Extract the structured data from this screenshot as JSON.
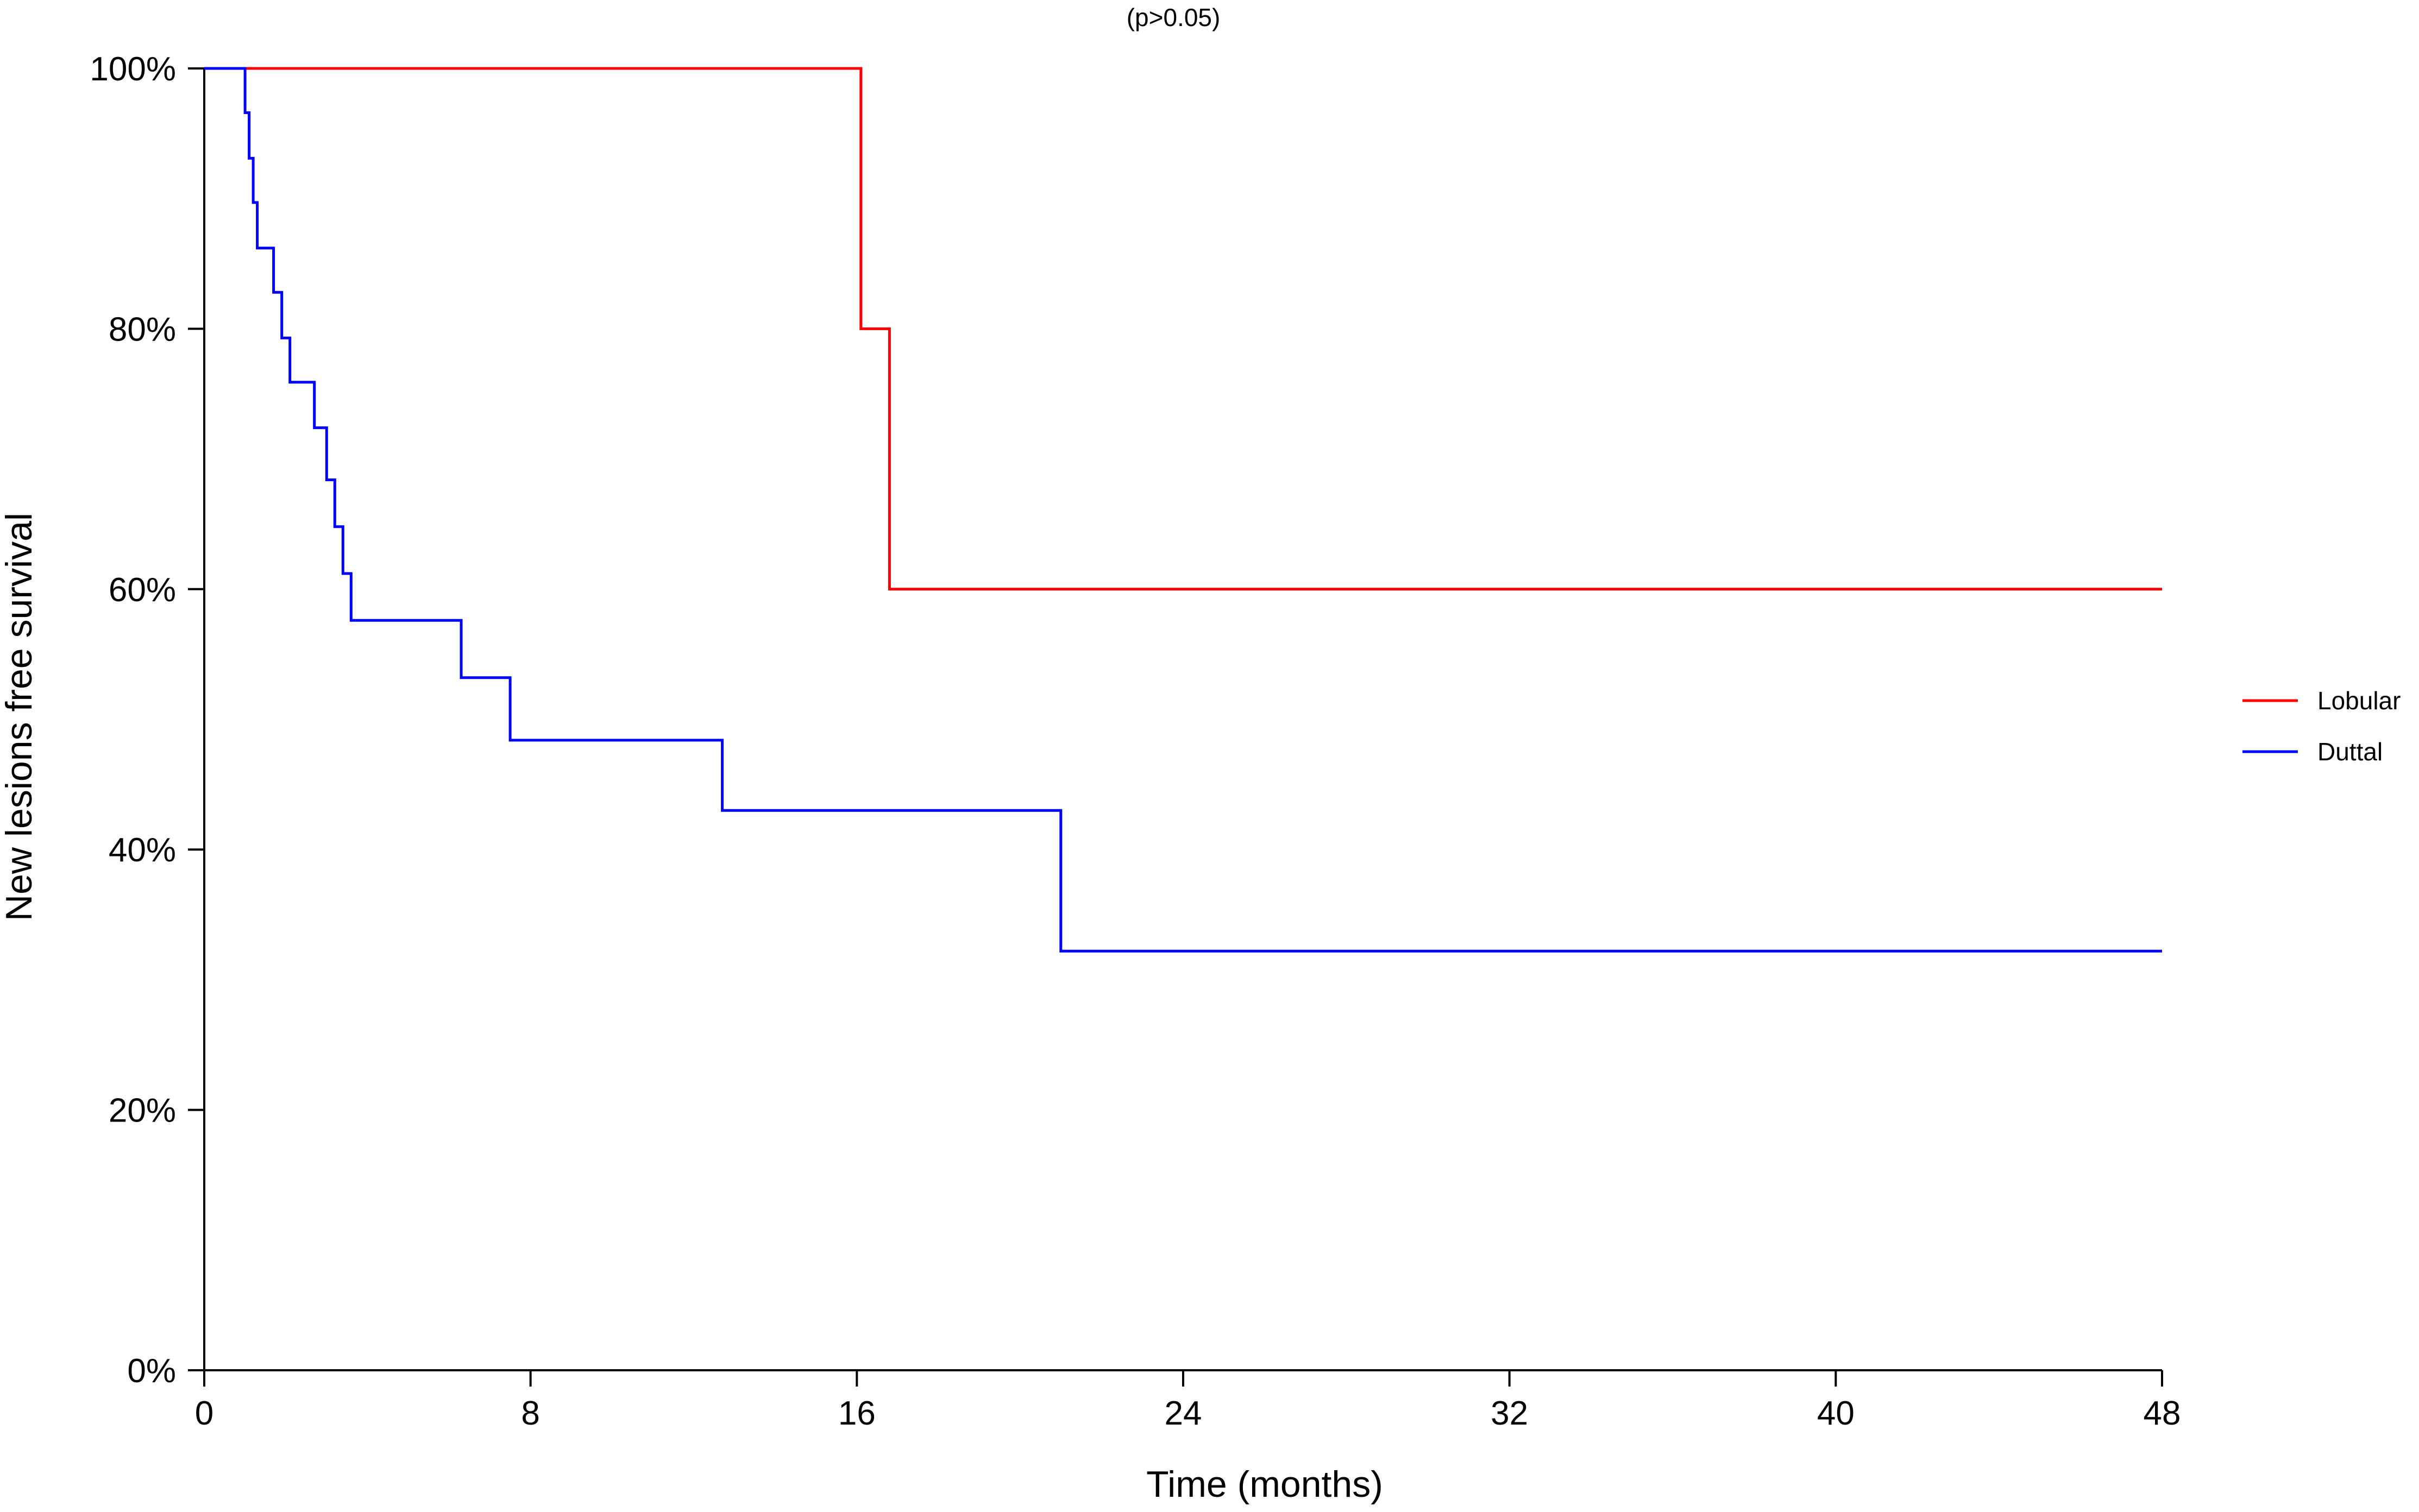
{
  "chart_data": {
    "type": "line",
    "step": true,
    "title": "",
    "subtitle": "(p>0.05)",
    "xlabel": "Time (months)",
    "ylabel": "New lesions free survival",
    "xlim": [
      0,
      48
    ],
    "ylim": [
      0,
      1
    ],
    "x_ticks": [
      0,
      8,
      16,
      24,
      32,
      40,
      48
    ],
    "x_tick_labels": [
      "0",
      "8",
      "16",
      "24",
      "32",
      "40",
      "48"
    ],
    "y_ticks": [
      0,
      0.2,
      0.4,
      0.6,
      0.8,
      1.0
    ],
    "y_tick_labels": [
      "0%",
      "20%",
      "40%",
      "60%",
      "80%",
      "100%"
    ],
    "grid": false,
    "legend_position": "right",
    "series": [
      {
        "name": "Lobular",
        "color": "#ff0000",
        "x": [
          0,
          16.1,
          16.8,
          48
        ],
        "y": [
          1.0,
          0.8,
          0.6,
          0.6
        ]
      },
      {
        "name": "Duttal",
        "color": "#0000ff",
        "x": [
          0,
          1.0,
          1.1,
          1.2,
          1.3,
          1.4,
          1.7,
          1.9,
          2.1,
          2.7,
          3.0,
          3.2,
          3.4,
          3.6,
          6.3,
          7.5,
          12.7,
          21.0,
          48
        ],
        "y": [
          1.0,
          0.966,
          0.931,
          0.897,
          0.862,
          0.862,
          0.828,
          0.793,
          0.759,
          0.724,
          0.684,
          0.648,
          0.612,
          0.576,
          0.532,
          0.484,
          0.43,
          0.322,
          0.322
        ]
      }
    ]
  }
}
